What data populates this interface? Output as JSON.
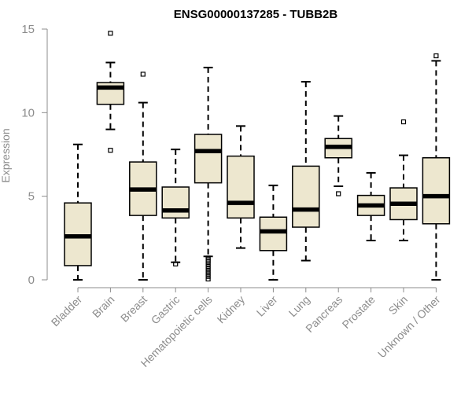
{
  "chart_data": {
    "type": "boxplot",
    "title": "ENSG00000137285 - TUBB2B",
    "xlabel": "",
    "ylabel": "Expression",
    "ylim": [
      0,
      15
    ],
    "yticks": [
      0,
      5,
      10,
      15
    ],
    "grid": false,
    "legend": "none",
    "box_color": "#ede7cf",
    "line_color": "#000000",
    "axis_color": "#8c8c8c",
    "categories": [
      "Bladder",
      "Brain",
      "Breast",
      "Gastric",
      "Hematopoietic cells",
      "Kidney",
      "Liver",
      "Lung",
      "Pancreas",
      "Prostate",
      "Skin",
      "Unknown / Other"
    ],
    "series": [
      {
        "name": "Bladder",
        "whisker_low": 0.0,
        "q1": 0.85,
        "median": 2.6,
        "q3": 4.6,
        "whisker_high": 8.1,
        "outliers": []
      },
      {
        "name": "Brain",
        "whisker_low": 9.0,
        "q1": 10.5,
        "median": 11.5,
        "q3": 11.8,
        "whisker_high": 13.0,
        "outliers": [
          7.75,
          14.75
        ]
      },
      {
        "name": "Breast",
        "whisker_low": 0.0,
        "q1": 3.85,
        "median": 5.4,
        "q3": 7.05,
        "whisker_high": 10.6,
        "outliers": [
          12.3
        ]
      },
      {
        "name": "Gastric",
        "whisker_low": 1.05,
        "q1": 3.7,
        "median": 4.15,
        "q3": 5.55,
        "whisker_high": 7.8,
        "outliers": [
          0.95
        ]
      },
      {
        "name": "Hematopoietic cells",
        "whisker_low": 1.4,
        "q1": 5.8,
        "median": 7.7,
        "q3": 8.7,
        "whisker_high": 12.7,
        "outliers": [
          1.3,
          1.2,
          1.1,
          0.95,
          0.8,
          0.65,
          0.5,
          0.35,
          0.2,
          0.05
        ]
      },
      {
        "name": "Kidney",
        "whisker_low": 1.9,
        "q1": 3.7,
        "median": 4.6,
        "q3": 7.4,
        "whisker_high": 9.2,
        "outliers": []
      },
      {
        "name": "Liver",
        "whisker_low": 0.0,
        "q1": 1.75,
        "median": 2.9,
        "q3": 3.75,
        "whisker_high": 5.65,
        "outliers": []
      },
      {
        "name": "Lung",
        "whisker_low": 1.15,
        "q1": 3.15,
        "median": 4.2,
        "q3": 6.8,
        "whisker_high": 11.85,
        "outliers": []
      },
      {
        "name": "Pancreas",
        "whisker_low": 5.6,
        "q1": 7.3,
        "median": 7.95,
        "q3": 8.45,
        "whisker_high": 9.8,
        "outliers": [
          5.15
        ]
      },
      {
        "name": "Prostate",
        "whisker_low": 2.35,
        "q1": 3.85,
        "median": 4.45,
        "q3": 5.05,
        "whisker_high": 6.4,
        "outliers": []
      },
      {
        "name": "Skin",
        "whisker_low": 2.35,
        "q1": 3.6,
        "median": 4.55,
        "q3": 5.5,
        "whisker_high": 7.45,
        "outliers": [
          9.45
        ]
      },
      {
        "name": "Unknown / Other",
        "whisker_low": 0.0,
        "q1": 3.35,
        "median": 5.0,
        "q3": 7.3,
        "whisker_high": 13.1,
        "outliers": [
          13.4
        ]
      }
    ]
  }
}
